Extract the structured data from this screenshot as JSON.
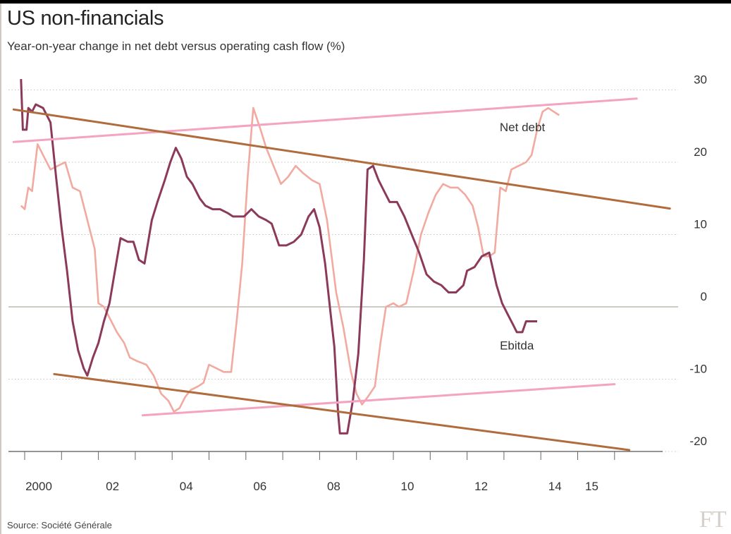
{
  "title": "US non-financials",
  "subtitle": "Year-on-year change in net debt versus operating cash flow (%)",
  "source": "Source: Société Générale",
  "logo_text": "FT",
  "chart_data": {
    "type": "line",
    "title": "US non-financials",
    "subtitle": "Year-on-year change in net debt versus operating cash flow (%)",
    "xlabel": "",
    "ylabel": "",
    "x_range": [
      1999.9,
      2017.5
    ],
    "ylim": [
      -20,
      30
    ],
    "y_ticks": [
      30,
      20,
      10,
      0,
      -10,
      -20
    ],
    "x_tick_labels": [
      {
        "x": 2000,
        "label": "2000"
      },
      {
        "x": 2002,
        "label": "02"
      },
      {
        "x": 2004,
        "label": "04"
      },
      {
        "x": 2006,
        "label": "06"
      },
      {
        "x": 2008,
        "label": "08"
      },
      {
        "x": 2010,
        "label": "10"
      },
      {
        "x": 2012,
        "label": "12"
      },
      {
        "x": 2014,
        "label": "14"
      },
      {
        "x": 2015,
        "label": "15"
      }
    ],
    "grid": "horizontal dotted",
    "series": [
      {
        "name": "Net debt",
        "color": "#f2a9a0",
        "points": [
          [
            1999.9,
            14.0
          ],
          [
            2000.0,
            13.5
          ],
          [
            2000.1,
            16.5
          ],
          [
            2000.2,
            16.0
          ],
          [
            2000.35,
            22.5
          ],
          [
            2000.5,
            21.0
          ],
          [
            2000.7,
            19.0
          ],
          [
            2000.9,
            19.5
          ],
          [
            2001.1,
            20.0
          ],
          [
            2001.3,
            16.5
          ],
          [
            2001.5,
            16.0
          ],
          [
            2001.7,
            12.0
          ],
          [
            2001.9,
            8.0
          ],
          [
            2002.0,
            0.5
          ],
          [
            2002.15,
            0.0
          ],
          [
            2002.3,
            -1.5
          ],
          [
            2002.5,
            -3.5
          ],
          [
            2002.7,
            -5.0
          ],
          [
            2002.85,
            -7.0
          ],
          [
            2003.05,
            -7.5
          ],
          [
            2003.3,
            -8.0
          ],
          [
            2003.5,
            -9.5
          ],
          [
            2003.7,
            -12.0
          ],
          [
            2003.9,
            -13.0
          ],
          [
            2004.05,
            -14.5
          ],
          [
            2004.2,
            -14.0
          ],
          [
            2004.35,
            -12.5
          ],
          [
            2004.5,
            -11.5
          ],
          [
            2004.7,
            -11.0
          ],
          [
            2004.85,
            -10.5
          ],
          [
            2005.0,
            -8.0
          ],
          [
            2005.2,
            -8.5
          ],
          [
            2005.4,
            -9.0
          ],
          [
            2005.6,
            -9.0
          ],
          [
            2005.75,
            -2.0
          ],
          [
            2005.9,
            6.0
          ],
          [
            2006.05,
            18.0
          ],
          [
            2006.2,
            27.5
          ],
          [
            2006.4,
            24.5
          ],
          [
            2006.55,
            22.0
          ],
          [
            2006.75,
            19.5
          ],
          [
            2006.95,
            17.0
          ],
          [
            2007.15,
            18.0
          ],
          [
            2007.35,
            19.5
          ],
          [
            2007.55,
            18.5
          ],
          [
            2007.8,
            17.5
          ],
          [
            2008.0,
            17.0
          ],
          [
            2008.2,
            12.0
          ],
          [
            2008.45,
            2.0
          ],
          [
            2008.65,
            -3.0
          ],
          [
            2008.85,
            -9.0
          ],
          [
            2009.0,
            -12.0
          ],
          [
            2009.15,
            -13.5
          ],
          [
            2009.3,
            -12.5
          ],
          [
            2009.5,
            -11.0
          ],
          [
            2009.65,
            -5.0
          ],
          [
            2009.8,
            0.0
          ],
          [
            2010.0,
            0.5
          ],
          [
            2010.15,
            0.0
          ],
          [
            2010.35,
            0.5
          ],
          [
            2010.55,
            5.0
          ],
          [
            2010.75,
            10.0
          ],
          [
            2010.95,
            13.0
          ],
          [
            2011.15,
            15.5
          ],
          [
            2011.35,
            17.0
          ],
          [
            2011.55,
            16.5
          ],
          [
            2011.75,
            16.5
          ],
          [
            2011.95,
            15.5
          ],
          [
            2012.15,
            14.0
          ],
          [
            2012.3,
            11.0
          ],
          [
            2012.45,
            7.0
          ],
          [
            2012.6,
            7.0
          ],
          [
            2012.75,
            7.5
          ],
          [
            2012.9,
            16.5
          ],
          [
            2013.05,
            16.0
          ],
          [
            2013.2,
            19.0
          ],
          [
            2013.4,
            19.5
          ],
          [
            2013.6,
            20.0
          ],
          [
            2013.75,
            21.0
          ],
          [
            2013.9,
            24.5
          ],
          [
            2014.05,
            27.0
          ],
          [
            2014.2,
            27.5
          ],
          [
            2014.35,
            27.0
          ],
          [
            2014.5,
            26.5
          ]
        ]
      },
      {
        "name": "Ebitda",
        "color": "#8c3a5a",
        "points": [
          [
            1999.9,
            31.5
          ],
          [
            1999.95,
            24.5
          ],
          [
            2000.05,
            24.5
          ],
          [
            2000.1,
            27.5
          ],
          [
            2000.2,
            27.0
          ],
          [
            2000.3,
            28.0
          ],
          [
            2000.5,
            27.5
          ],
          [
            2000.7,
            25.5
          ],
          [
            2000.85,
            18.0
          ],
          [
            2001.0,
            11.0
          ],
          [
            2001.15,
            5.0
          ],
          [
            2001.3,
            -2.0
          ],
          [
            2001.45,
            -6.0
          ],
          [
            2001.6,
            -8.5
          ],
          [
            2001.7,
            -9.5
          ],
          [
            2001.85,
            -7.0
          ],
          [
            2002.0,
            -5.0
          ],
          [
            2002.15,
            -2.0
          ],
          [
            2002.3,
            0.5
          ],
          [
            2002.45,
            5.0
          ],
          [
            2002.6,
            9.5
          ],
          [
            2002.8,
            9.0
          ],
          [
            2002.95,
            9.0
          ],
          [
            2003.1,
            6.5
          ],
          [
            2003.25,
            6.0
          ],
          [
            2003.45,
            12.0
          ],
          [
            2003.6,
            14.5
          ],
          [
            2003.8,
            17.5
          ],
          [
            2003.95,
            20.0
          ],
          [
            2004.1,
            22.0
          ],
          [
            2004.25,
            20.5
          ],
          [
            2004.4,
            18.0
          ],
          [
            2004.55,
            17.0
          ],
          [
            2004.75,
            15.0
          ],
          [
            2004.9,
            14.0
          ],
          [
            2005.1,
            13.5
          ],
          [
            2005.3,
            13.5
          ],
          [
            2005.5,
            13.0
          ],
          [
            2005.65,
            12.5
          ],
          [
            2005.8,
            12.5
          ],
          [
            2005.95,
            12.5
          ],
          [
            2006.15,
            13.5
          ],
          [
            2006.35,
            12.5
          ],
          [
            2006.55,
            12.0
          ],
          [
            2006.7,
            11.5
          ],
          [
            2006.9,
            8.5
          ],
          [
            2007.1,
            8.5
          ],
          [
            2007.3,
            9.0
          ],
          [
            2007.5,
            10.0
          ],
          [
            2007.7,
            12.5
          ],
          [
            2007.85,
            13.5
          ],
          [
            2008.0,
            11.0
          ],
          [
            2008.15,
            6.0
          ],
          [
            2008.3,
            -1.0
          ],
          [
            2008.4,
            -5.5
          ],
          [
            2008.5,
            -14.5
          ],
          [
            2008.55,
            -17.5
          ],
          [
            2008.75,
            -17.5
          ],
          [
            2008.9,
            -13.0
          ],
          [
            2009.05,
            -6.5
          ],
          [
            2009.2,
            6.5
          ],
          [
            2009.3,
            19.0
          ],
          [
            2009.45,
            19.5
          ],
          [
            2009.6,
            17.5
          ],
          [
            2009.75,
            16.0
          ],
          [
            2009.9,
            14.5
          ],
          [
            2010.1,
            14.5
          ],
          [
            2010.3,
            12.5
          ],
          [
            2010.5,
            10.0
          ],
          [
            2010.7,
            7.5
          ],
          [
            2010.9,
            4.5
          ],
          [
            2011.1,
            3.5
          ],
          [
            2011.3,
            3.0
          ],
          [
            2011.5,
            2.0
          ],
          [
            2011.7,
            2.0
          ],
          [
            2011.9,
            3.0
          ],
          [
            2012.0,
            5.0
          ],
          [
            2012.2,
            5.5
          ],
          [
            2012.4,
            7.0
          ],
          [
            2012.6,
            7.5
          ],
          [
            2012.8,
            3.0
          ],
          [
            2012.95,
            0.5
          ],
          [
            2013.1,
            -1.0
          ],
          [
            2013.25,
            -2.5
          ],
          [
            2013.35,
            -3.5
          ],
          [
            2013.5,
            -3.5
          ],
          [
            2013.6,
            -2.0
          ],
          [
            2013.75,
            -2.0
          ],
          [
            2013.9,
            -2.0
          ]
        ]
      }
    ],
    "annotations": [
      {
        "text": "Net debt",
        "x": 2013.5,
        "y": 24.3,
        "anchor": "middle"
      },
      {
        "text": "Ebitda",
        "x": 2013.35,
        "y": -5.9,
        "anchor": "middle"
      }
    ],
    "trend_lines": [
      {
        "role": "net debt upper channel",
        "color": "#f4a3c0",
        "from": [
          1999.7,
          22.8
        ],
        "to": [
          2016.6,
          28.8
        ]
      },
      {
        "role": "net debt lower channel",
        "color": "#f4a3c0",
        "from": [
          2003.2,
          -15.0
        ],
        "to": [
          2016.0,
          -10.7
        ]
      },
      {
        "role": "ebitda upper channel",
        "color": "#b06c3c",
        "from": [
          1999.7,
          27.3
        ],
        "to": [
          2017.5,
          13.6
        ]
      },
      {
        "role": "ebitda lower channel",
        "color": "#b06c3c",
        "from": [
          2000.8,
          -9.3
        ],
        "to": [
          2016.4,
          -19.8
        ]
      }
    ]
  }
}
